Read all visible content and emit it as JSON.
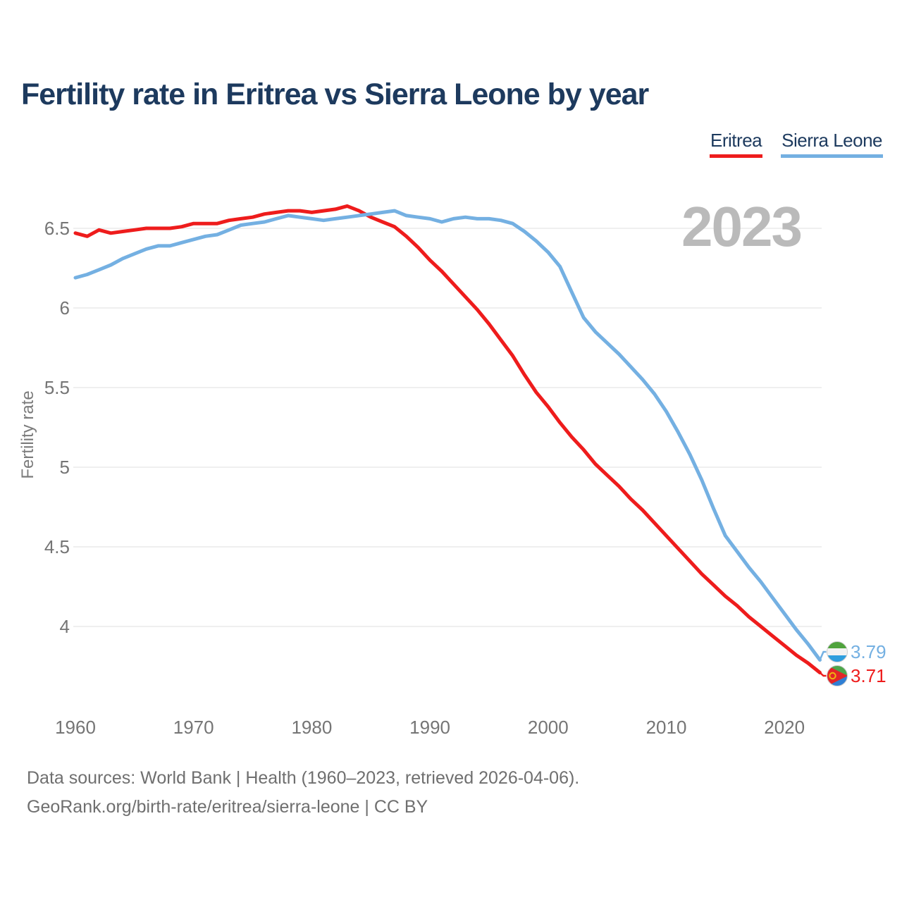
{
  "title": "Fertility rate in Eritrea vs Sierra Leone by year",
  "watermark": "2023",
  "legend": [
    {
      "label": "Eritrea",
      "color": "#ee1c1c"
    },
    {
      "label": "Sierra Leone",
      "color": "#74b0e2"
    }
  ],
  "y_axis": {
    "label": "Fertility rate",
    "ticks": [
      "6.5",
      "6",
      "5.5",
      "5",
      "4.5",
      "4"
    ],
    "tick_values": [
      6.5,
      6.0,
      5.5,
      5.0,
      4.5,
      4.0
    ]
  },
  "x_axis": {
    "ticks": [
      1960,
      1970,
      1980,
      1990,
      2000,
      2010,
      2020
    ]
  },
  "end_labels": [
    {
      "series": "Sierra Leone",
      "value": "3.79",
      "color": "#74b0e2"
    },
    {
      "series": "Eritrea",
      "value": "3.71",
      "color": "#ee1c1c"
    }
  ],
  "footer": {
    "line1": "Data sources: World Bank | Health (1960–2023, retrieved 2026-04-06).",
    "line2": "GeoRank.org/birth-rate/eritrea/sierra-leone | CC BY"
  },
  "colors": {
    "title": "#1d3a5e",
    "eritrea": "#ee1c1c",
    "sierra_leone": "#74b0e2",
    "tick_text": "#757575",
    "axis_title_text": "#7b7b7b",
    "gridline": "#eaeaea",
    "watermark": "#bababa",
    "footer_text": "#6f6f6f",
    "flag_sl_green": "#4fa33c",
    "flag_sl_white": "#f2f2f2",
    "flag_sl_blue": "#2e9ede",
    "flag_er_green": "#4da64a",
    "flag_er_blue": "#2f7fd4",
    "flag_er_red": "#e32528",
    "flag_er_gold": "#efb310"
  },
  "chart_data": {
    "type": "line",
    "title": "Fertility rate in Eritrea vs Sierra Leone by year",
    "xlabel": "",
    "ylabel": "Fertility rate",
    "ylim": [
      3.6,
      6.75
    ],
    "xlim": [
      1960,
      2023
    ],
    "grid": true,
    "legend_position": "top-right",
    "x": [
      1960,
      1961,
      1962,
      1963,
      1964,
      1965,
      1966,
      1967,
      1968,
      1969,
      1970,
      1971,
      1972,
      1973,
      1974,
      1975,
      1976,
      1977,
      1978,
      1979,
      1980,
      1981,
      1982,
      1983,
      1984,
      1985,
      1986,
      1987,
      1988,
      1989,
      1990,
      1991,
      1992,
      1993,
      1994,
      1995,
      1996,
      1997,
      1998,
      1999,
      2000,
      2001,
      2002,
      2003,
      2004,
      2005,
      2006,
      2007,
      2008,
      2009,
      2010,
      2011,
      2012,
      2013,
      2014,
      2015,
      2016,
      2017,
      2018,
      2019,
      2020,
      2021,
      2022,
      2023
    ],
    "series": [
      {
        "name": "Eritrea",
        "color": "#ee1c1c",
        "values": [
          6.47,
          6.45,
          6.49,
          6.47,
          6.48,
          6.49,
          6.5,
          6.5,
          6.5,
          6.51,
          6.53,
          6.53,
          6.53,
          6.55,
          6.56,
          6.57,
          6.59,
          6.6,
          6.61,
          6.61,
          6.6,
          6.61,
          6.62,
          6.64,
          6.61,
          6.57,
          6.54,
          6.51,
          6.45,
          6.38,
          6.3,
          6.23,
          6.15,
          6.07,
          5.99,
          5.9,
          5.8,
          5.7,
          5.58,
          5.47,
          5.38,
          5.28,
          5.19,
          5.11,
          5.02,
          4.95,
          4.88,
          4.8,
          4.73,
          4.65,
          4.57,
          4.49,
          4.41,
          4.33,
          4.26,
          4.19,
          4.13,
          4.06,
          4.0,
          3.94,
          3.88,
          3.82,
          3.77,
          3.71
        ]
      },
      {
        "name": "Sierra Leone",
        "color": "#74b0e2",
        "values": [
          6.19,
          6.21,
          6.24,
          6.27,
          6.31,
          6.34,
          6.37,
          6.39,
          6.39,
          6.41,
          6.43,
          6.45,
          6.46,
          6.49,
          6.52,
          6.53,
          6.54,
          6.56,
          6.58,
          6.57,
          6.56,
          6.55,
          6.56,
          6.57,
          6.58,
          6.59,
          6.6,
          6.61,
          6.58,
          6.57,
          6.56,
          6.54,
          6.56,
          6.57,
          6.56,
          6.56,
          6.55,
          6.53,
          6.48,
          6.42,
          6.35,
          6.26,
          6.1,
          5.94,
          5.85,
          5.78,
          5.71,
          5.63,
          5.55,
          5.46,
          5.35,
          5.22,
          5.08,
          4.92,
          4.74,
          4.57,
          4.47,
          4.37,
          4.28,
          4.18,
          4.08,
          3.98,
          3.89,
          3.79
        ]
      }
    ]
  }
}
